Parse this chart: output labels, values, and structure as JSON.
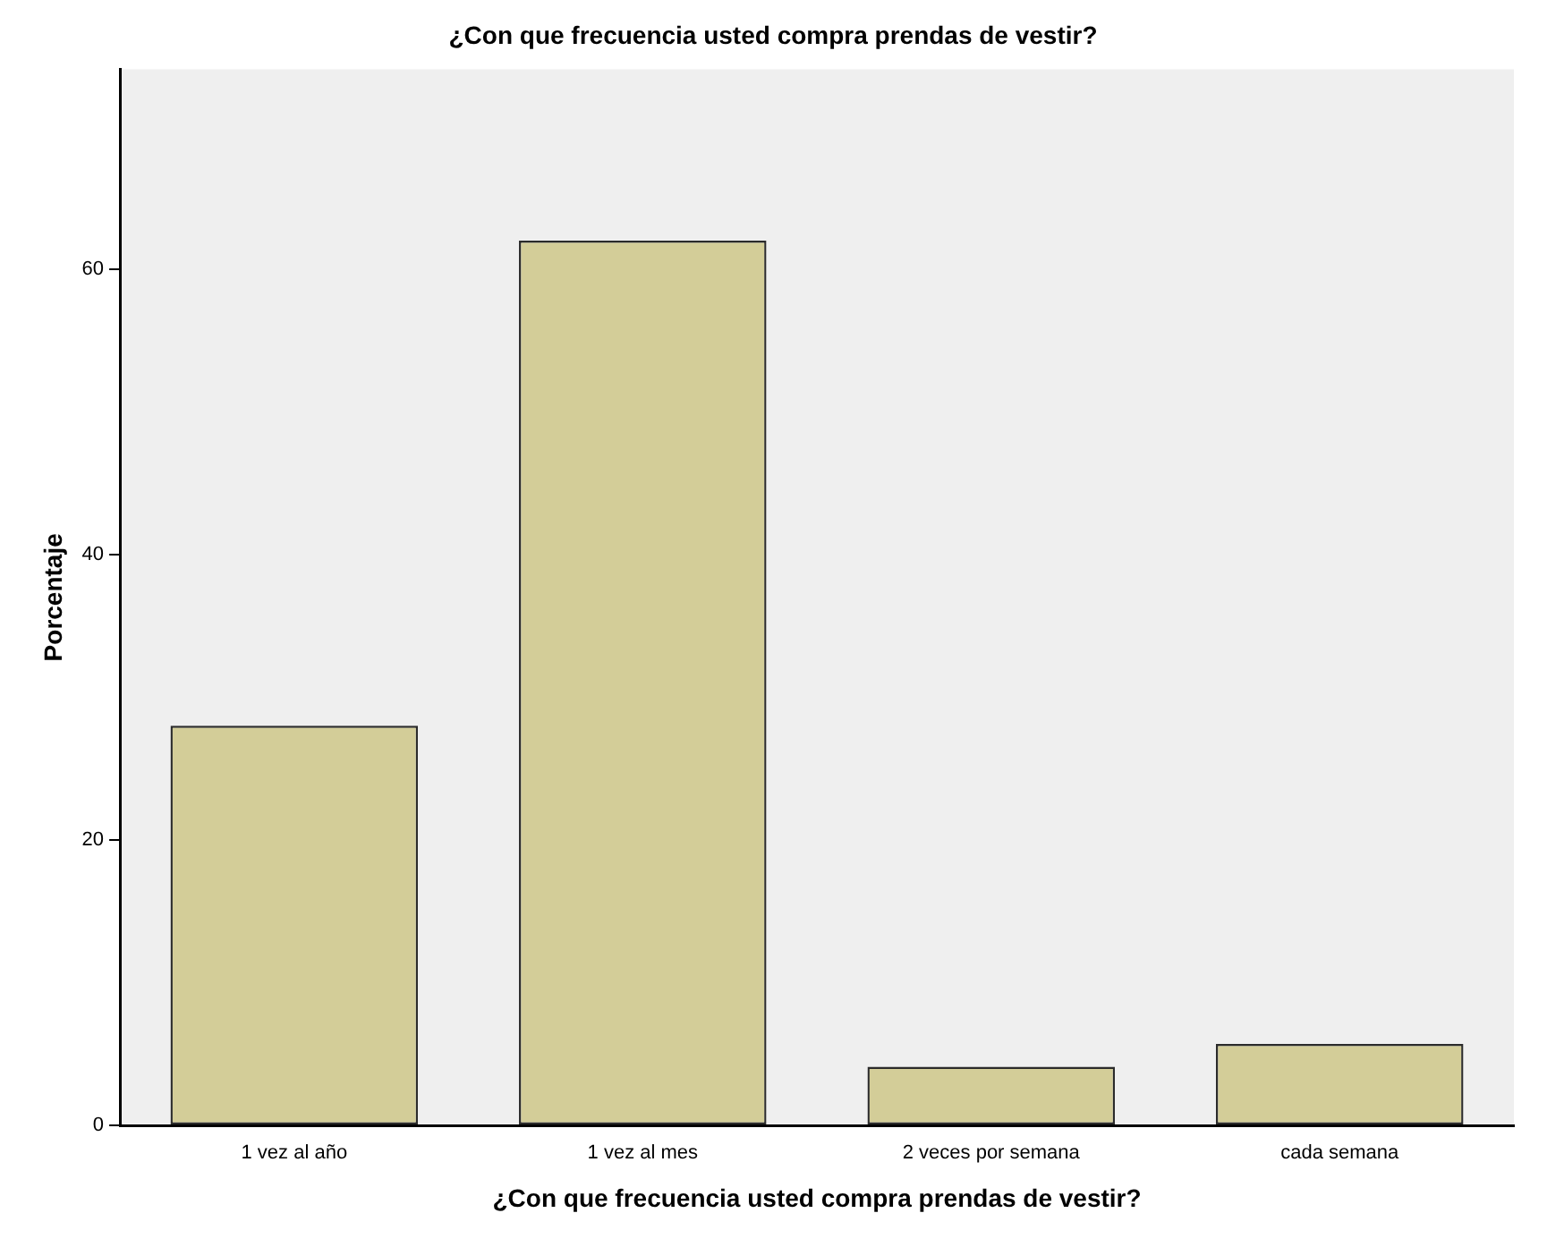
{
  "chart_data": {
    "type": "bar",
    "title": "¿Con que frecuencia usted compra prendas de vestir?",
    "xlabel": "¿Con que frecuencia usted compra prendas de vestir?",
    "ylabel": "Porcentaje",
    "categories": [
      "1 vez al año",
      "1 vez al mes",
      "2 veces por semana",
      "cada semana"
    ],
    "values": [
      28,
      62,
      4.1,
      5.7
    ],
    "color": "#d3cd98",
    "ylim": [
      0,
      74
    ],
    "yticks": [
      0,
      20,
      40,
      60
    ],
    "grid": false,
    "legend": false
  }
}
